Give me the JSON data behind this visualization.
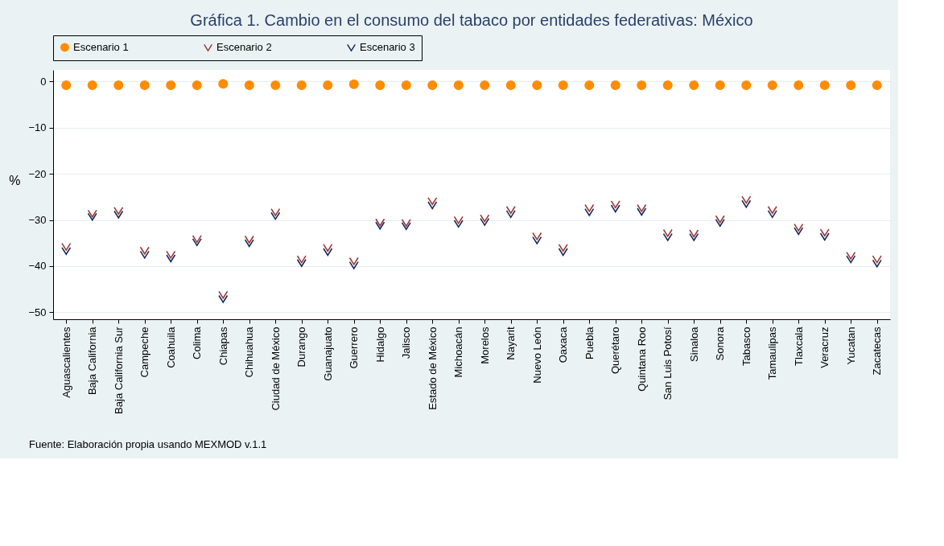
{
  "chart_data": {
    "type": "scatter",
    "title": "Gráfica 1. Cambio en el consumo del tabaco por entidades federativas: México",
    "ylabel": "%",
    "categories": [
      "Aguascalientes",
      "Baja California",
      "Baja California Sur",
      "Campeche",
      "Coahuila",
      "Colima",
      "Chiapas",
      "Chihuahua",
      "Ciudad de México",
      "Durango",
      "Guanajuato",
      "Guerrero",
      "Hidalgo",
      "Jalisco",
      "Estado de México",
      "Michoacán",
      "Morelos",
      "Nayarit",
      "Nuevo León",
      "Oaxaca",
      "Puebla",
      "Querétaro",
      "Quintana Roo",
      "San Luis Potosí",
      "Sinaloa",
      "Sonora",
      "Tabasco",
      "Tamaulipas",
      "Tlaxcala",
      "Veracruz",
      "Yucatan",
      "Zacatecas"
    ],
    "series": [
      {
        "name": "Escenario 1",
        "color": "#ff8c00",
        "marker": "circle",
        "values": [
          -0.8,
          -0.8,
          -0.8,
          -0.8,
          -0.8,
          -0.8,
          -0.5,
          -0.8,
          -0.8,
          -0.8,
          -0.8,
          -0.6,
          -0.8,
          -0.8,
          -0.8,
          -0.8,
          -0.8,
          -0.8,
          -0.8,
          -0.8,
          -0.8,
          -0.8,
          -0.8,
          -0.8,
          -0.8,
          -0.8,
          -0.8,
          -0.8,
          -0.8,
          -0.8,
          -0.8,
          -0.8
        ]
      },
      {
        "name": "Escenario 2",
        "color": "#9b3a3a",
        "marker": "cross",
        "values": [
          -35.8,
          -28.6,
          -28.0,
          -36.6,
          -37.5,
          -34.1,
          -46.2,
          -34.2,
          -28.3,
          -38.5,
          -36.0,
          -38.9,
          -30.5,
          -30.6,
          -25.9,
          -30.0,
          -29.6,
          -27.8,
          -33.5,
          -36.0,
          -27.4,
          -26.6,
          -27.4,
          -32.8,
          -32.9,
          -29.8,
          -25.6,
          -27.8,
          -31.6,
          -32.7,
          -37.7,
          -38.5
        ]
      },
      {
        "name": "Escenario 3",
        "color": "#1a2a5a",
        "marker": "cross",
        "values": [
          -36.7,
          -29.3,
          -28.8,
          -37.5,
          -38.3,
          -34.8,
          -47.1,
          -35.0,
          -29.1,
          -39.3,
          -36.9,
          -39.8,
          -31.2,
          -31.3,
          -26.8,
          -30.8,
          -30.4,
          -28.7,
          -34.4,
          -36.9,
          -28.3,
          -27.5,
          -28.2,
          -33.7,
          -33.7,
          -30.6,
          -26.5,
          -28.7,
          -32.4,
          -33.6,
          -38.5,
          -39.4
        ]
      }
    ],
    "ylim": [
      -51.5,
      2.5
    ],
    "yticks": [
      0,
      -10,
      -20,
      -30,
      -40,
      -50
    ],
    "grid": "y",
    "legend": "top",
    "annotations": [
      "Fuente: Elaboración propia usando MEXMOD v.1.1"
    ]
  }
}
